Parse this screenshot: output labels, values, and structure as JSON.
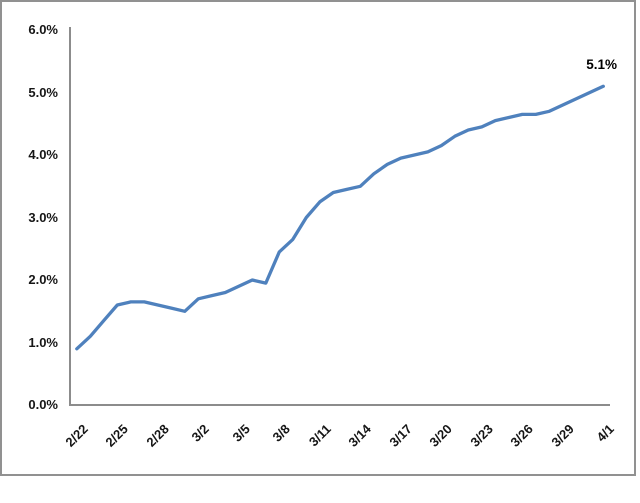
{
  "chart_data": {
    "type": "line",
    "title": "",
    "series_name": "",
    "unit": "%",
    "categories": [
      "2/22",
      "2/23",
      "2/24",
      "2/25",
      "2/26",
      "2/27",
      "2/28",
      "2/29",
      "3/1",
      "3/2",
      "3/3",
      "3/4",
      "3/5",
      "3/6",
      "3/7",
      "3/8",
      "3/9",
      "3/10",
      "3/11",
      "3/12",
      "3/13",
      "3/14",
      "3/15",
      "3/16",
      "3/17",
      "3/18",
      "3/19",
      "3/20",
      "3/21",
      "3/22",
      "3/23",
      "3/24",
      "3/25",
      "3/26",
      "3/27",
      "3/28",
      "3/29",
      "3/30",
      "3/31",
      "4/1"
    ],
    "values": [
      0.9,
      1.1,
      1.35,
      1.6,
      1.65,
      1.65,
      1.6,
      1.55,
      1.5,
      1.7,
      1.75,
      1.8,
      1.9,
      2.0,
      1.95,
      2.45,
      2.65,
      3.0,
      3.25,
      3.4,
      3.45,
      3.5,
      3.7,
      3.85,
      3.95,
      4.0,
      4.05,
      4.15,
      4.3,
      4.4,
      4.45,
      4.55,
      4.6,
      4.65,
      4.65,
      4.7,
      4.8,
      4.9,
      5.0,
      5.1
    ],
    "x_tick_labels": [
      "2/22",
      "2/25",
      "2/28",
      "3/2",
      "3/5",
      "3/8",
      "3/11",
      "3/14",
      "3/17",
      "3/20",
      "3/23",
      "3/26",
      "3/29",
      "4/1"
    ],
    "x_tick_every": 3,
    "y_tick_labels": [
      "0.0%",
      "1.0%",
      "2.0%",
      "3.0%",
      "4.0%",
      "5.0%",
      "6.0%"
    ],
    "ylim": [
      0,
      6
    ],
    "y_tick_step": 1,
    "grid": "off",
    "legend": "none",
    "end_point_label": "5.1%",
    "line_color": "#4F81BD",
    "axis_color": "#8C8C8C",
    "label_color": "#161616",
    "frame_border_color": "#919191"
  }
}
